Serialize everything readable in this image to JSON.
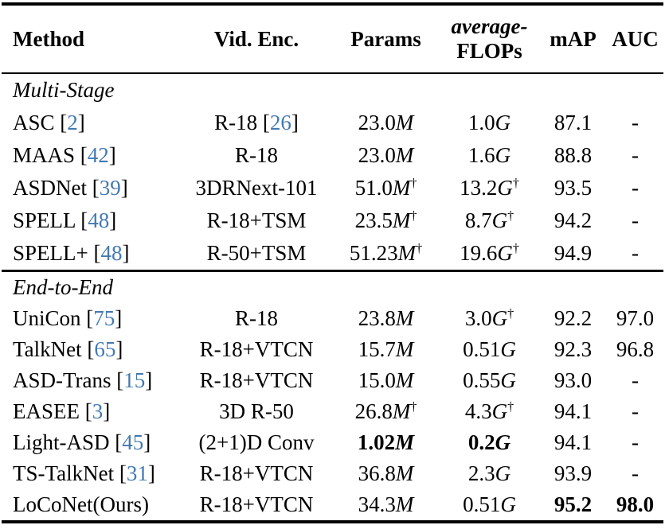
{
  "colors": {
    "citation_blue": "#4379b2",
    "text": "#000000",
    "background": "#ffffff"
  },
  "header": {
    "method": "Method",
    "vid_enc": "Vid. Enc.",
    "params": "Params",
    "flops_line1": "average-",
    "flops_line2": "FLOPs",
    "map": "mAP",
    "auc": "AUC"
  },
  "sections": [
    {
      "title": "Multi-Stage",
      "rows": [
        {
          "method": "ASC",
          "method_cite": "2",
          "vid_enc": "R-18",
          "vid_enc_cite": "26",
          "params": "23.0",
          "params_unit": "M",
          "params_dagger": false,
          "params_bold": false,
          "flops": "1.0",
          "flops_unit": "G",
          "flops_dagger": false,
          "flops_bold": false,
          "map": "87.1",
          "map_bold": false,
          "auc": "-",
          "auc_bold": false
        },
        {
          "method": "MAAS",
          "method_cite": "42",
          "vid_enc": "R-18",
          "vid_enc_cite": "",
          "params": "23.0",
          "params_unit": "M",
          "params_dagger": false,
          "params_bold": false,
          "flops": "1.6",
          "flops_unit": "G",
          "flops_dagger": false,
          "flops_bold": false,
          "map": "88.8",
          "map_bold": false,
          "auc": "-",
          "auc_bold": false
        },
        {
          "method": "ASDNet",
          "method_cite": "39",
          "vid_enc": "3DRNext-101",
          "vid_enc_cite": "",
          "params": "51.0",
          "params_unit": "M",
          "params_dagger": true,
          "params_bold": false,
          "flops": "13.2",
          "flops_unit": "G",
          "flops_dagger": true,
          "flops_bold": false,
          "map": "93.5",
          "map_bold": false,
          "auc": "-",
          "auc_bold": false
        },
        {
          "method": "SPELL",
          "method_cite": "48",
          "vid_enc": "R-18+TSM",
          "vid_enc_cite": "",
          "params": "23.5",
          "params_unit": "M",
          "params_dagger": true,
          "params_bold": false,
          "flops": "8.7",
          "flops_unit": "G",
          "flops_dagger": true,
          "flops_bold": false,
          "map": "94.2",
          "map_bold": false,
          "auc": "-",
          "auc_bold": false
        },
        {
          "method": "SPELL+",
          "method_cite": "48",
          "vid_enc": "R-50+TSM",
          "vid_enc_cite": "",
          "params": "51.23",
          "params_unit": "M",
          "params_dagger": true,
          "params_bold": false,
          "flops": "19.6",
          "flops_unit": "G",
          "flops_dagger": true,
          "flops_bold": false,
          "map": "94.9",
          "map_bold": false,
          "auc": "-",
          "auc_bold": false
        }
      ]
    },
    {
      "title": "End-to-End",
      "rows": [
        {
          "method": "UniCon",
          "method_cite": "75",
          "vid_enc": "R-18",
          "vid_enc_cite": "",
          "params": "23.8",
          "params_unit": "M",
          "params_dagger": false,
          "params_bold": false,
          "flops": "3.0",
          "flops_unit": "G",
          "flops_dagger": true,
          "flops_bold": false,
          "map": "92.2",
          "map_bold": false,
          "auc": "97.0",
          "auc_bold": false
        },
        {
          "method": "TalkNet",
          "method_cite": "65",
          "vid_enc": "R-18+VTCN",
          "vid_enc_cite": "",
          "params": "15.7",
          "params_unit": "M",
          "params_dagger": false,
          "params_bold": false,
          "flops": "0.51",
          "flops_unit": "G",
          "flops_dagger": false,
          "flops_bold": false,
          "map": "92.3",
          "map_bold": false,
          "auc": "96.8",
          "auc_bold": false
        },
        {
          "method": "ASD-Trans",
          "method_cite": "15",
          "vid_enc": "R-18+VTCN",
          "vid_enc_cite": "",
          "params": "15.0",
          "params_unit": "M",
          "params_dagger": false,
          "params_bold": false,
          "flops": "0.55",
          "flops_unit": "G",
          "flops_dagger": false,
          "flops_bold": false,
          "map": "93.0",
          "map_bold": false,
          "auc": "-",
          "auc_bold": false
        },
        {
          "method": "EASEE",
          "method_cite": "3",
          "vid_enc": "3D R-50",
          "vid_enc_cite": "",
          "params": "26.8",
          "params_unit": "M",
          "params_dagger": true,
          "params_bold": false,
          "flops": "4.3",
          "flops_unit": "G",
          "flops_dagger": true,
          "flops_bold": false,
          "map": "94.1",
          "map_bold": false,
          "auc": "-",
          "auc_bold": false
        },
        {
          "method": "Light-ASD",
          "method_cite": "45",
          "vid_enc": "(2+1)D Conv",
          "vid_enc_cite": "",
          "params": "1.02",
          "params_unit": "M",
          "params_dagger": false,
          "params_bold": true,
          "flops": "0.2",
          "flops_unit": "G",
          "flops_dagger": false,
          "flops_bold": true,
          "map": "94.1",
          "map_bold": false,
          "auc": "-",
          "auc_bold": false
        },
        {
          "method": "TS-TalkNet",
          "method_cite": "31",
          "vid_enc": "R-18+VTCN",
          "vid_enc_cite": "",
          "params": "36.8",
          "params_unit": "M",
          "params_dagger": false,
          "params_bold": false,
          "flops": "2.3",
          "flops_unit": "G",
          "flops_dagger": false,
          "flops_bold": false,
          "map": "93.9",
          "map_bold": false,
          "auc": "-",
          "auc_bold": false
        },
        {
          "method": "LoCoNet(Ours)",
          "method_cite": "",
          "vid_enc": "R-18+VTCN",
          "vid_enc_cite": "",
          "params": "34.3",
          "params_unit": "M",
          "params_dagger": false,
          "params_bold": false,
          "flops": "0.51",
          "flops_unit": "G",
          "flops_dagger": false,
          "flops_bold": false,
          "map": "95.2",
          "map_bold": true,
          "auc": "98.0",
          "auc_bold": true
        }
      ]
    }
  ]
}
